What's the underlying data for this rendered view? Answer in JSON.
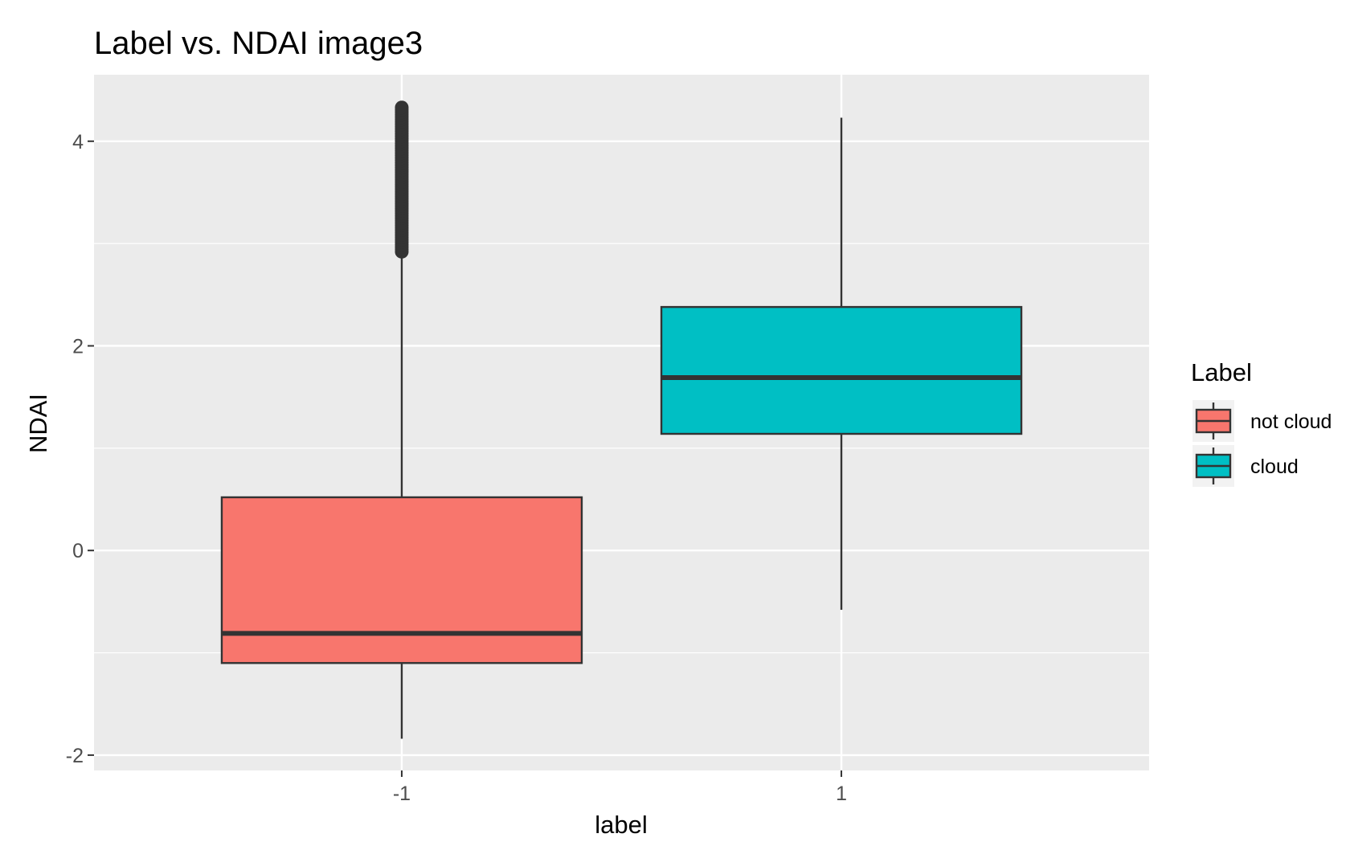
{
  "chart_data": {
    "type": "boxplot",
    "title": "Label vs. NDAI image3",
    "xlabel": "label",
    "ylabel": "NDAI",
    "categories": [
      "-1",
      "1"
    ],
    "ylim": [
      -2.15,
      4.65
    ],
    "y_ticks": [
      -2,
      0,
      2,
      4
    ],
    "y_tick_labels": [
      "-2",
      "0",
      "2",
      "4"
    ],
    "grid": true,
    "legend": {
      "title": "Label",
      "position": "right",
      "entries": [
        {
          "label": "not cloud",
          "color": "#F8766D"
        },
        {
          "label": "cloud",
          "color": "#00BFC4"
        }
      ]
    },
    "series": [
      {
        "category": "-1",
        "name": "not cloud",
        "color": "#F8766D",
        "whisker_low": -1.84,
        "q1": -1.1,
        "median": -0.81,
        "q3": 0.52,
        "whisker_high": 2.92,
        "outlier_range": [
          2.92,
          4.33
        ]
      },
      {
        "category": "1",
        "name": "cloud",
        "color": "#00BFC4",
        "whisker_low": -0.58,
        "q1": 1.14,
        "median": 1.69,
        "q3": 2.38,
        "whisker_high": 4.23,
        "outlier_range": null
      }
    ],
    "colors": {
      "panel_background": "#EBEBEB",
      "grid_line": "#FFFFFF",
      "outline": "#333333",
      "tick_label": "#4D4D4D"
    }
  }
}
